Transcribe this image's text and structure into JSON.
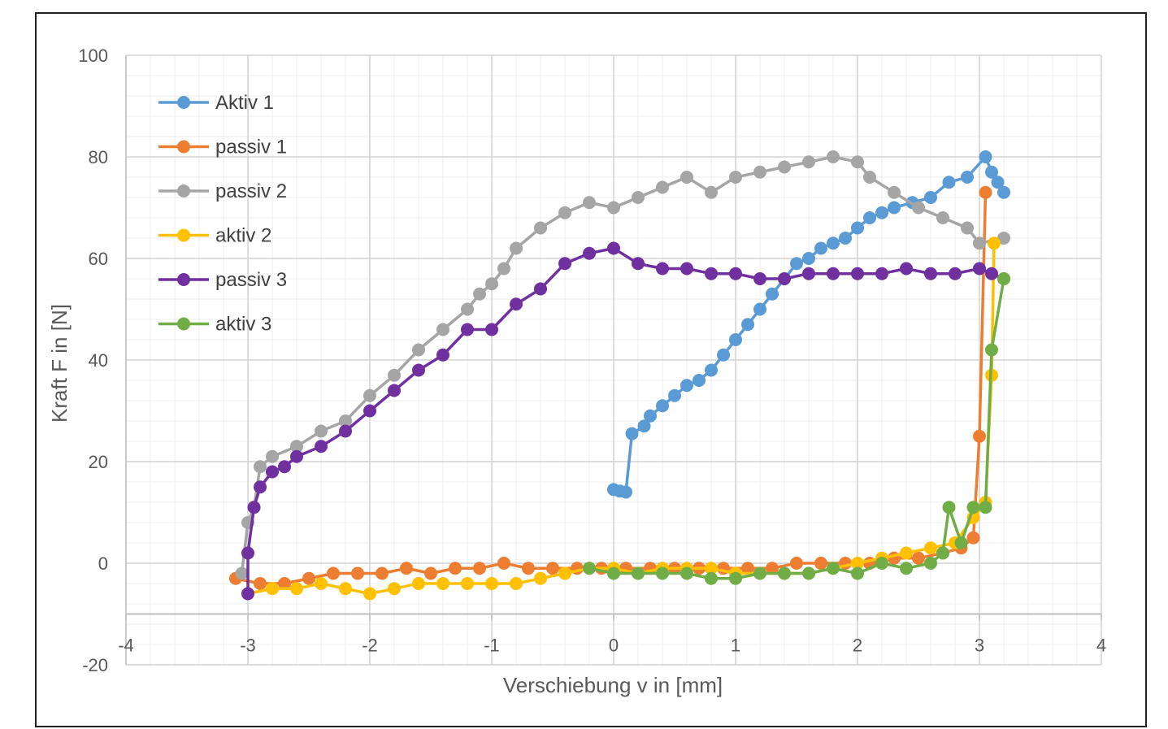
{
  "chart_data": {
    "type": "scatter",
    "title": "",
    "xlabel": "Verschiebung v in [mm]",
    "ylabel": "Kraft F in [N]",
    "xlim": [
      -4,
      4
    ],
    "ylim": [
      -20,
      100
    ],
    "x_ticks": [
      -4,
      -3,
      -2,
      -1,
      0,
      1,
      2,
      3,
      4
    ],
    "y_ticks": [
      -20,
      0,
      20,
      40,
      60,
      80,
      100
    ],
    "x_axis_crosses_y_at": -10,
    "grid": "major and minor",
    "legend_position": "top-left",
    "series": [
      {
        "name": "Aktiv 1",
        "color": "#5B9BD5",
        "points": [
          [
            0.0,
            14.5
          ],
          [
            0.05,
            14.2
          ],
          [
            0.1,
            14.0
          ],
          [
            0.15,
            25.5
          ],
          [
            0.25,
            27
          ],
          [
            0.3,
            29
          ],
          [
            0.4,
            31
          ],
          [
            0.5,
            33
          ],
          [
            0.6,
            35
          ],
          [
            0.7,
            36
          ],
          [
            0.8,
            38
          ],
          [
            0.9,
            41
          ],
          [
            1.0,
            44
          ],
          [
            1.1,
            47
          ],
          [
            1.2,
            50
          ],
          [
            1.3,
            53
          ],
          [
            1.4,
            56
          ],
          [
            1.5,
            59
          ],
          [
            1.6,
            60
          ],
          [
            1.7,
            62
          ],
          [
            1.8,
            63
          ],
          [
            1.9,
            64
          ],
          [
            2.0,
            66
          ],
          [
            2.1,
            68
          ],
          [
            2.2,
            69
          ],
          [
            2.3,
            70
          ],
          [
            2.45,
            71
          ],
          [
            2.6,
            72
          ],
          [
            2.75,
            75
          ],
          [
            2.9,
            76
          ],
          [
            3.05,
            80
          ],
          [
            3.1,
            77
          ],
          [
            3.15,
            75
          ],
          [
            3.2,
            73
          ]
        ]
      },
      {
        "name": "passiv 1",
        "color": "#ED7D31",
        "points": [
          [
            -3.1,
            -3
          ],
          [
            -2.9,
            -4
          ],
          [
            -2.7,
            -4
          ],
          [
            -2.5,
            -3
          ],
          [
            -2.3,
            -2
          ],
          [
            -2.1,
            -2
          ],
          [
            -1.9,
            -2
          ],
          [
            -1.7,
            -1
          ],
          [
            -1.5,
            -2
          ],
          [
            -1.3,
            -1
          ],
          [
            -1.1,
            -1
          ],
          [
            -0.9,
            0
          ],
          [
            -0.7,
            -1
          ],
          [
            -0.5,
            -1
          ],
          [
            -0.3,
            -1
          ],
          [
            -0.1,
            -1
          ],
          [
            0.1,
            -1
          ],
          [
            0.3,
            -1
          ],
          [
            0.5,
            -1
          ],
          [
            0.7,
            -1
          ],
          [
            0.9,
            -1
          ],
          [
            1.1,
            -1
          ],
          [
            1.3,
            -1
          ],
          [
            1.5,
            0
          ],
          [
            1.7,
            0
          ],
          [
            1.9,
            0
          ],
          [
            2.1,
            0
          ],
          [
            2.3,
            1
          ],
          [
            2.5,
            1
          ],
          [
            2.7,
            2
          ],
          [
            2.85,
            3
          ],
          [
            2.95,
            5
          ],
          [
            3.0,
            25
          ],
          [
            3.05,
            73
          ]
        ]
      },
      {
        "name": "passiv 2",
        "color": "#A5A5A5",
        "points": [
          [
            -3.05,
            -2
          ],
          [
            -3.0,
            8
          ],
          [
            -2.95,
            11
          ],
          [
            -2.9,
            19
          ],
          [
            -2.8,
            21
          ],
          [
            -2.6,
            23
          ],
          [
            -2.4,
            26
          ],
          [
            -2.2,
            28
          ],
          [
            -2.0,
            33
          ],
          [
            -1.8,
            37
          ],
          [
            -1.6,
            42
          ],
          [
            -1.4,
            46
          ],
          [
            -1.2,
            50
          ],
          [
            -1.1,
            53
          ],
          [
            -1.0,
            55
          ],
          [
            -0.9,
            58
          ],
          [
            -0.8,
            62
          ],
          [
            -0.6,
            66
          ],
          [
            -0.4,
            69
          ],
          [
            -0.2,
            71
          ],
          [
            0.0,
            70
          ],
          [
            0.2,
            72
          ],
          [
            0.4,
            74
          ],
          [
            0.6,
            76
          ],
          [
            0.8,
            73
          ],
          [
            1.0,
            76
          ],
          [
            1.2,
            77
          ],
          [
            1.4,
            78
          ],
          [
            1.6,
            79
          ],
          [
            1.8,
            80
          ],
          [
            2.0,
            79
          ],
          [
            2.1,
            76
          ],
          [
            2.3,
            73
          ],
          [
            2.5,
            70
          ],
          [
            2.7,
            68
          ],
          [
            2.9,
            66
          ],
          [
            3.0,
            63
          ],
          [
            3.2,
            64
          ]
        ]
      },
      {
        "name": "aktiv 2",
        "color": "#FFC000",
        "points": [
          [
            -3.0,
            -6
          ],
          [
            -2.8,
            -5
          ],
          [
            -2.6,
            -5
          ],
          [
            -2.4,
            -4
          ],
          [
            -2.2,
            -5
          ],
          [
            -2.0,
            -6
          ],
          [
            -1.8,
            -5
          ],
          [
            -1.6,
            -4
          ],
          [
            -1.4,
            -4
          ],
          [
            -1.2,
            -4
          ],
          [
            -1.0,
            -4
          ],
          [
            -0.8,
            -4
          ],
          [
            -0.6,
            -3
          ],
          [
            -0.4,
            -2
          ],
          [
            -0.2,
            -1
          ],
          [
            0.0,
            -1
          ],
          [
            0.2,
            -2
          ],
          [
            0.4,
            -1
          ],
          [
            0.6,
            -1
          ],
          [
            0.8,
            -1
          ],
          [
            1.0,
            -2
          ],
          [
            1.2,
            -2
          ],
          [
            1.4,
            -2
          ],
          [
            1.6,
            -2
          ],
          [
            1.8,
            -1
          ],
          [
            2.0,
            0
          ],
          [
            2.2,
            1
          ],
          [
            2.4,
            2
          ],
          [
            2.6,
            3
          ],
          [
            2.8,
            4
          ],
          [
            2.95,
            9
          ],
          [
            3.05,
            12
          ],
          [
            3.1,
            37
          ],
          [
            3.12,
            63
          ]
        ]
      },
      {
        "name": "passiv 3",
        "color": "#7030A0",
        "points": [
          [
            -3.0,
            -6
          ],
          [
            -3.0,
            2
          ],
          [
            -2.95,
            11
          ],
          [
            -2.9,
            15
          ],
          [
            -2.8,
            18
          ],
          [
            -2.7,
            19
          ],
          [
            -2.6,
            21
          ],
          [
            -2.4,
            23
          ],
          [
            -2.2,
            26
          ],
          [
            -2.0,
            30
          ],
          [
            -1.8,
            34
          ],
          [
            -1.6,
            38
          ],
          [
            -1.4,
            41
          ],
          [
            -1.2,
            46
          ],
          [
            -1.0,
            46
          ],
          [
            -0.8,
            51
          ],
          [
            -0.6,
            54
          ],
          [
            -0.4,
            59
          ],
          [
            -0.2,
            61
          ],
          [
            0.0,
            62
          ],
          [
            0.2,
            59
          ],
          [
            0.4,
            58
          ],
          [
            0.6,
            58
          ],
          [
            0.8,
            57
          ],
          [
            1.0,
            57
          ],
          [
            1.2,
            56
          ],
          [
            1.4,
            56
          ],
          [
            1.6,
            57
          ],
          [
            1.8,
            57
          ],
          [
            2.0,
            57
          ],
          [
            2.2,
            57
          ],
          [
            2.4,
            58
          ],
          [
            2.6,
            57
          ],
          [
            2.8,
            57
          ],
          [
            3.0,
            58
          ],
          [
            3.1,
            57
          ],
          [
            3.2,
            56
          ]
        ]
      },
      {
        "name": "aktiv 3",
        "color": "#70AD47",
        "points": [
          [
            -0.2,
            -1
          ],
          [
            0.0,
            -2
          ],
          [
            0.2,
            -2
          ],
          [
            0.4,
            -2
          ],
          [
            0.6,
            -2
          ],
          [
            0.8,
            -3
          ],
          [
            1.0,
            -3
          ],
          [
            1.2,
            -2
          ],
          [
            1.4,
            -2
          ],
          [
            1.6,
            -2
          ],
          [
            1.8,
            -1
          ],
          [
            2.0,
            -2
          ],
          [
            2.2,
            0
          ],
          [
            2.4,
            -1
          ],
          [
            2.6,
            0
          ],
          [
            2.7,
            2
          ],
          [
            2.75,
            11
          ],
          [
            2.85,
            4
          ],
          [
            2.95,
            11
          ],
          [
            3.05,
            11
          ],
          [
            3.1,
            42
          ],
          [
            3.2,
            56
          ]
        ]
      }
    ]
  }
}
